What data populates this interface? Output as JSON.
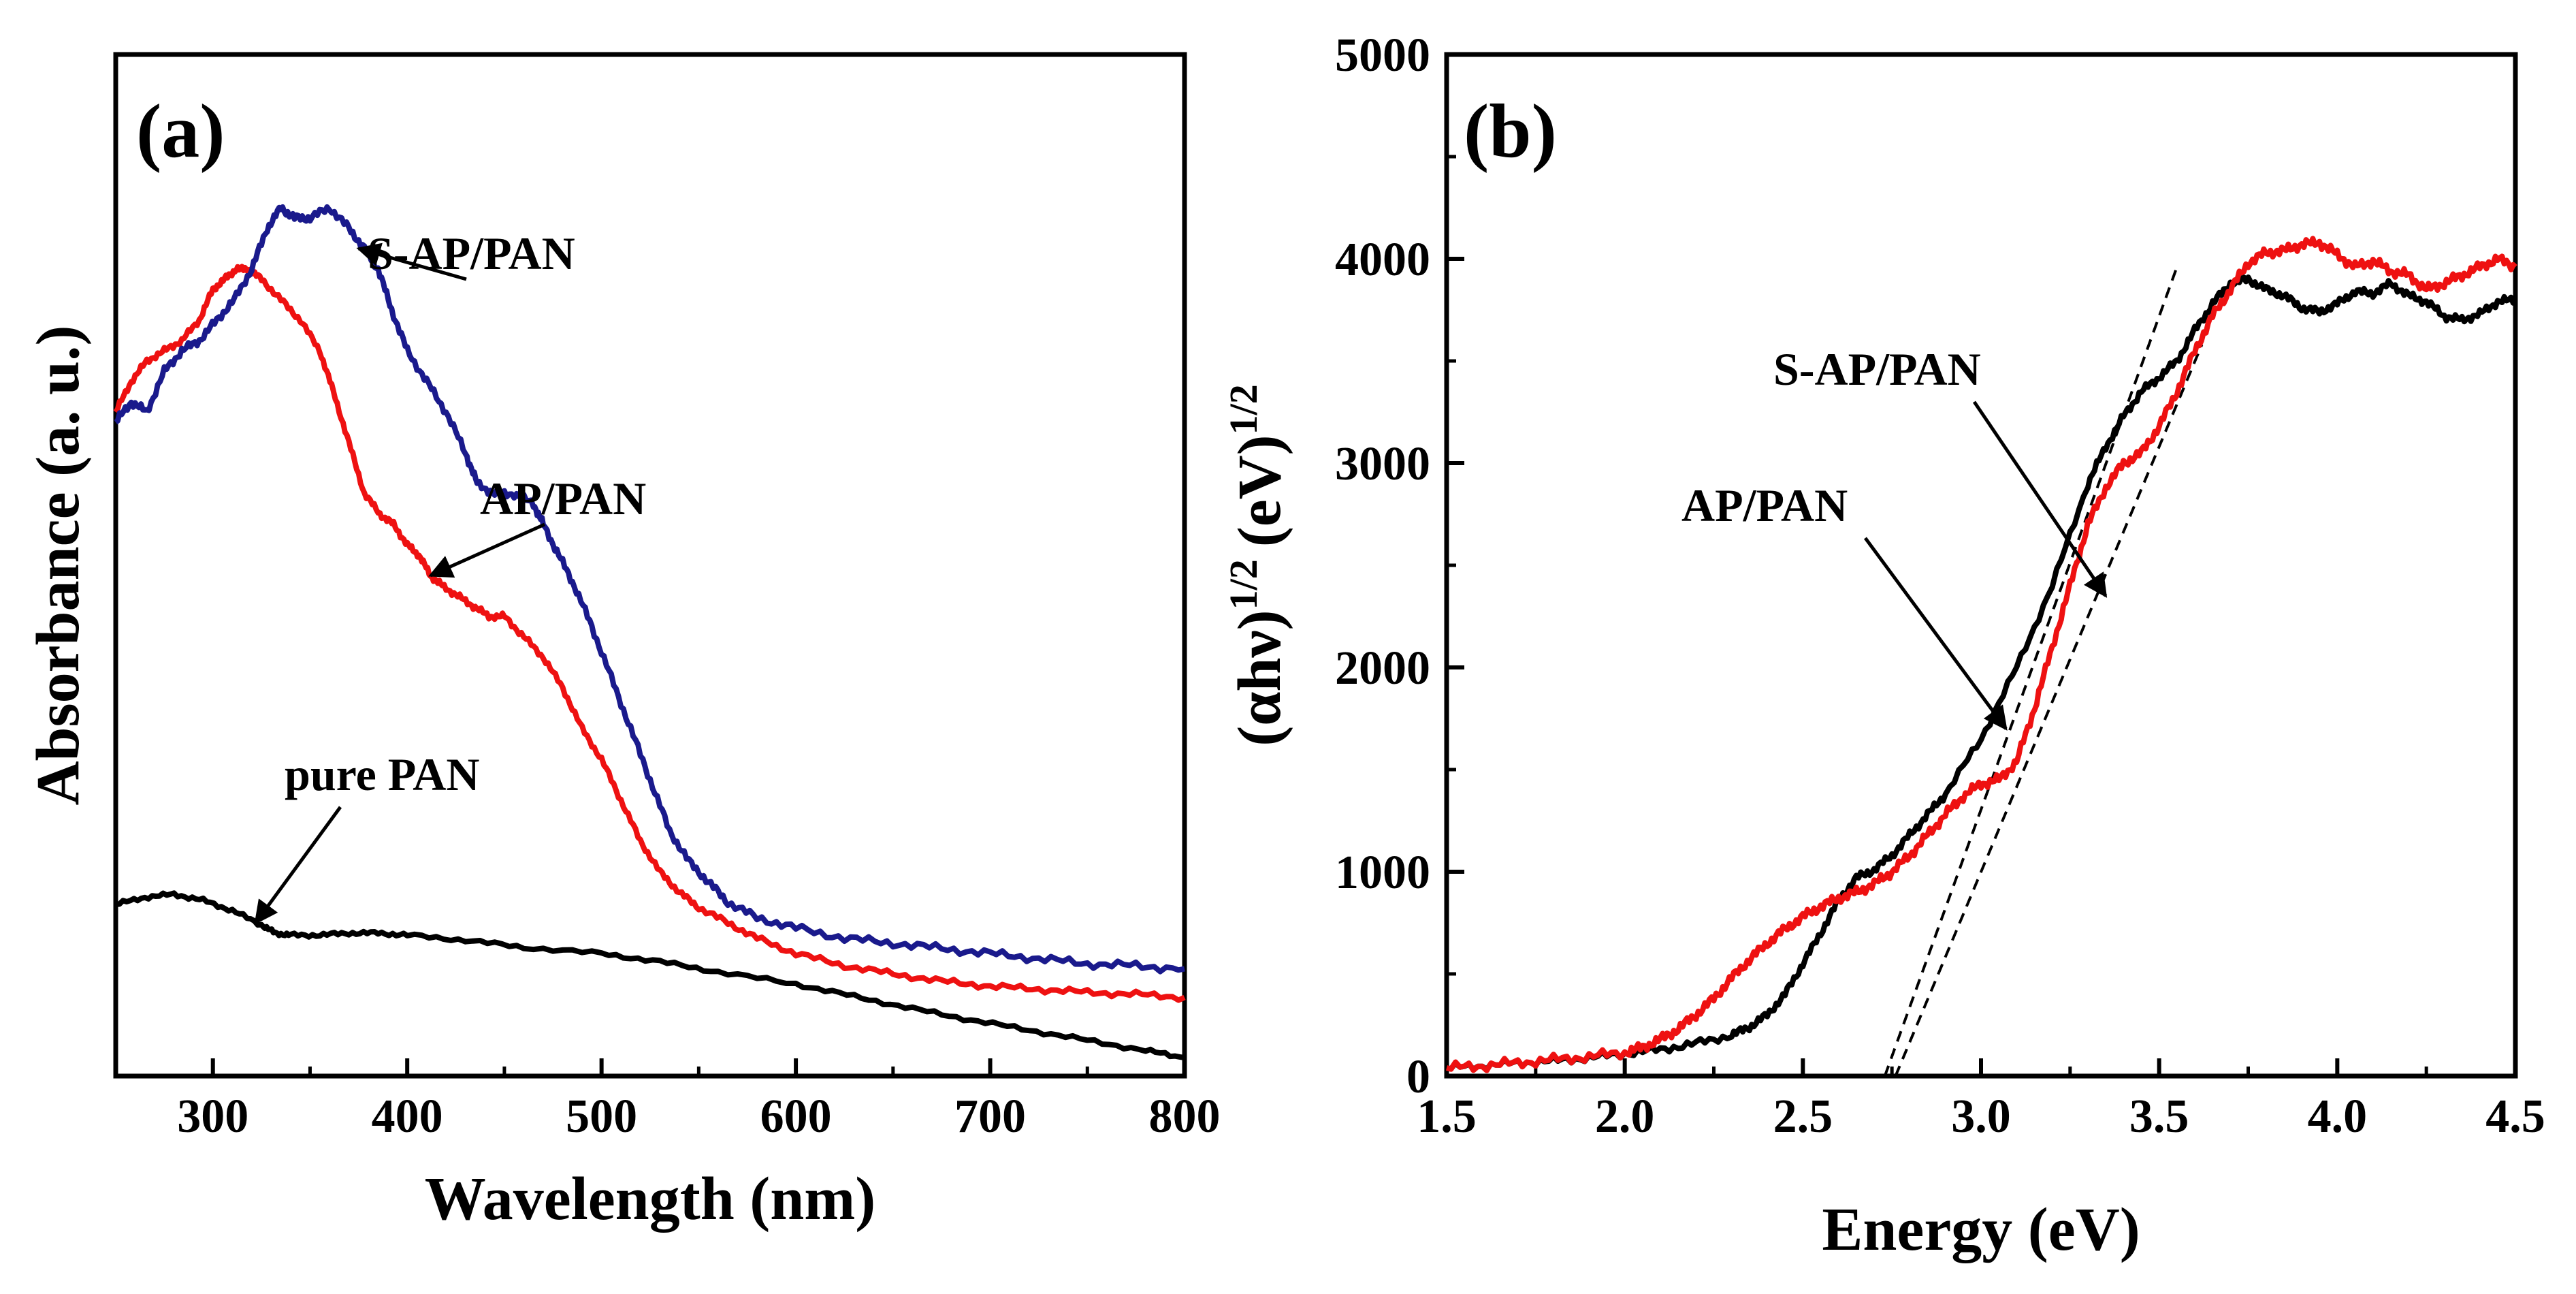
{
  "chart_data": [
    {
      "panel": "(a)",
      "type": "line",
      "xlabel": "Wavelength (nm)",
      "ylabel": "Absorbance (a. u.)",
      "xlim": [
        250,
        800
      ],
      "ylim": [
        0,
        1
      ],
      "xticks": [
        300,
        400,
        500,
        600,
        700,
        800
      ],
      "xtick_labels": [
        "300",
        "400",
        "500",
        "600",
        "700",
        "800"
      ],
      "yticks_shown": false,
      "series": [
        {
          "name": "S-AP/PAN",
          "color": "#1a1a8c",
          "x": [
            250,
            258,
            266,
            275,
            284,
            293,
            302,
            311,
            320,
            328,
            335,
            342,
            350,
            360,
            370,
            378,
            385,
            392,
            400,
            410,
            420,
            430,
            436,
            445,
            455,
            465,
            470,
            478,
            486,
            495,
            505,
            515,
            525,
            535,
            545,
            555,
            565,
            580,
            600,
            625,
            650,
            675,
            700,
            725,
            750,
            775,
            800
          ],
          "y": [
            0.64,
            0.66,
            0.65,
            0.69,
            0.71,
            0.72,
            0.74,
            0.76,
            0.79,
            0.83,
            0.85,
            0.84,
            0.84,
            0.85,
            0.83,
            0.81,
            0.79,
            0.75,
            0.71,
            0.68,
            0.65,
            0.61,
            0.58,
            0.57,
            0.57,
            0.56,
            0.54,
            0.51,
            0.48,
            0.44,
            0.39,
            0.34,
            0.29,
            0.24,
            0.21,
            0.19,
            0.17,
            0.155,
            0.145,
            0.135,
            0.13,
            0.125,
            0.12,
            0.115,
            0.11,
            0.108,
            0.105
          ]
        },
        {
          "name": "AP/PAN",
          "color": "#ee1111",
          "x": [
            250,
            258,
            266,
            275,
            284,
            293,
            300,
            306,
            312,
            318,
            325,
            335,
            345,
            355,
            362,
            370,
            378,
            386,
            393,
            400,
            406,
            412,
            418,
            426,
            434,
            442,
            450,
            460,
            470,
            480,
            490,
            500,
            510,
            520,
            530,
            540,
            550,
            565,
            580,
            600,
            625,
            650,
            675,
            700,
            725,
            750,
            775,
            800
          ],
          "y": [
            0.65,
            0.68,
            0.7,
            0.71,
            0.72,
            0.74,
            0.77,
            0.78,
            0.79,
            0.79,
            0.78,
            0.76,
            0.74,
            0.71,
            0.67,
            0.62,
            0.57,
            0.55,
            0.54,
            0.52,
            0.51,
            0.49,
            0.48,
            0.47,
            0.46,
            0.45,
            0.45,
            0.43,
            0.41,
            0.38,
            0.34,
            0.31,
            0.27,
            0.23,
            0.2,
            0.18,
            0.165,
            0.15,
            0.135,
            0.12,
            0.108,
            0.1,
            0.093,
            0.088,
            0.085,
            0.082,
            0.08,
            0.077
          ]
        },
        {
          "name": "pure PAN",
          "color": "#000000",
          "x": [
            250,
            265,
            280,
            295,
            310,
            325,
            332,
            340,
            355,
            370,
            385,
            400,
            430,
            460,
            500,
            530,
            560,
            600,
            630,
            660,
            690,
            720,
            750,
            780,
            800
          ],
          "y": [
            0.168,
            0.175,
            0.178,
            0.172,
            0.162,
            0.148,
            0.14,
            0.138,
            0.138,
            0.14,
            0.14,
            0.138,
            0.133,
            0.126,
            0.12,
            0.112,
            0.102,
            0.09,
            0.078,
            0.066,
            0.055,
            0.045,
            0.035,
            0.025,
            0.018
          ]
        }
      ],
      "annotations": [
        {
          "text": "S-AP/PAN",
          "target_x": 375,
          "target_y": 0.81
        },
        {
          "text": "AP/PAN",
          "target_x": 412,
          "target_y": 0.49
        },
        {
          "text": "pure PAN",
          "target_x": 322,
          "target_y": 0.15
        }
      ]
    },
    {
      "panel": "(b)",
      "type": "line",
      "xlabel": "Energy (eV)",
      "ylabel": "(αhν)^1/2 (eV)^1/2",
      "ylabel_parts": {
        "base": "(αhν)",
        "exp1": "1/2",
        "unit": "(eV)",
        "exp2": "1/2"
      },
      "xlim": [
        1.5,
        4.5
      ],
      "ylim": [
        0,
        5000
      ],
      "xticks": [
        1.5,
        2.0,
        2.5,
        3.0,
        3.5,
        4.0,
        4.5
      ],
      "xtick_labels": [
        "1.5",
        "2.0",
        "2.5",
        "3.0",
        "3.5",
        "4.0",
        "4.5"
      ],
      "yticks": [
        0,
        1000,
        2000,
        3000,
        4000,
        5000
      ],
      "ytick_labels": [
        "0",
        "1000",
        "2000",
        "3000",
        "4000",
        "5000"
      ],
      "series": [
        {
          "name": "S-AP/PAN",
          "color": "#000000",
          "x": [
            1.5,
            1.6,
            1.7,
            1.8,
            1.9,
            2.0,
            2.1,
            2.2,
            2.3,
            2.35,
            2.4,
            2.45,
            2.5,
            2.55,
            2.6,
            2.65,
            2.7,
            2.75,
            2.8,
            2.85,
            2.9,
            3.0,
            3.1,
            3.2,
            3.3,
            3.35,
            3.4,
            3.45,
            3.5,
            3.55,
            3.6,
            3.65,
            3.7,
            3.75,
            3.8,
            3.85,
            3.9,
            3.95,
            4.0,
            4.05,
            4.1,
            4.15,
            4.2,
            4.25,
            4.3,
            4.35,
            4.4,
            4.45,
            4.5
          ],
          "y": [
            40,
            50,
            65,
            75,
            90,
            110,
            130,
            160,
            200,
            240,
            300,
            400,
            550,
            700,
            860,
            970,
            1010,
            1080,
            1180,
            1280,
            1380,
            1650,
            2000,
            2400,
            2900,
            3080,
            3230,
            3350,
            3420,
            3500,
            3650,
            3780,
            3880,
            3900,
            3850,
            3820,
            3760,
            3740,
            3780,
            3840,
            3830,
            3880,
            3820,
            3790,
            3720,
            3700,
            3730,
            3790,
            3800
          ]
        },
        {
          "name": "AP/PAN",
          "color": "#ee1111",
          "x": [
            1.5,
            1.6,
            1.7,
            1.8,
            1.9,
            2.0,
            2.05,
            2.1,
            2.15,
            2.2,
            2.25,
            2.3,
            2.35,
            2.4,
            2.45,
            2.5,
            2.55,
            2.6,
            2.65,
            2.7,
            2.75,
            2.8,
            2.85,
            2.9,
            2.95,
            3.0,
            3.05,
            3.1,
            3.15,
            3.2,
            3.25,
            3.3,
            3.35,
            3.4,
            3.45,
            3.5,
            3.55,
            3.6,
            3.65,
            3.7,
            3.75,
            3.8,
            3.85,
            3.9,
            3.95,
            4.0,
            4.05,
            4.1,
            4.15,
            4.2,
            4.25,
            4.3,
            4.35,
            4.4,
            4.45,
            4.5
          ],
          "y": [
            40,
            50,
            65,
            80,
            95,
            115,
            140,
            180,
            230,
            300,
            380,
            480,
            570,
            650,
            720,
            780,
            830,
            870,
            900,
            940,
            1000,
            1080,
            1180,
            1280,
            1370,
            1430,
            1450,
            1540,
            1800,
            2100,
            2400,
            2700,
            2880,
            3000,
            3050,
            3180,
            3350,
            3550,
            3720,
            3850,
            3980,
            4030,
            4040,
            4070,
            4080,
            4020,
            3960,
            3990,
            3940,
            3920,
            3850,
            3880,
            3920,
            3960,
            4000,
            3960
          ]
        }
      ],
      "tangent_lines": [
        {
          "x": [
            2.73,
            3.55
          ],
          "y": [
            0,
            3960
          ]
        },
        {
          "x": [
            2.76,
            3.62
          ],
          "y": [
            0,
            3580
          ]
        }
      ],
      "annotations": [
        {
          "text": "S-AP/PAN",
          "target_x": 3.35,
          "target_y": 2350
        },
        {
          "text": "AP/PAN",
          "target_x": 3.07,
          "target_y": 1700
        }
      ]
    }
  ],
  "panels": {
    "a": {
      "label": "(a)",
      "xlabel": "Wavelength (nm)",
      "ylabel": "Absorbance (a. u.)",
      "annotations": [
        "S-AP/PAN",
        "AP/PAN",
        "pure PAN"
      ]
    },
    "b": {
      "label": "(b)",
      "xlabel": "Energy (eV)",
      "ylabel_base": "(αhν)",
      "ylabel_exp1": "1/2",
      "ylabel_unit": "(eV)",
      "ylabel_exp2": "1/2",
      "annotations": [
        "S-AP/PAN",
        "AP/PAN"
      ]
    }
  }
}
